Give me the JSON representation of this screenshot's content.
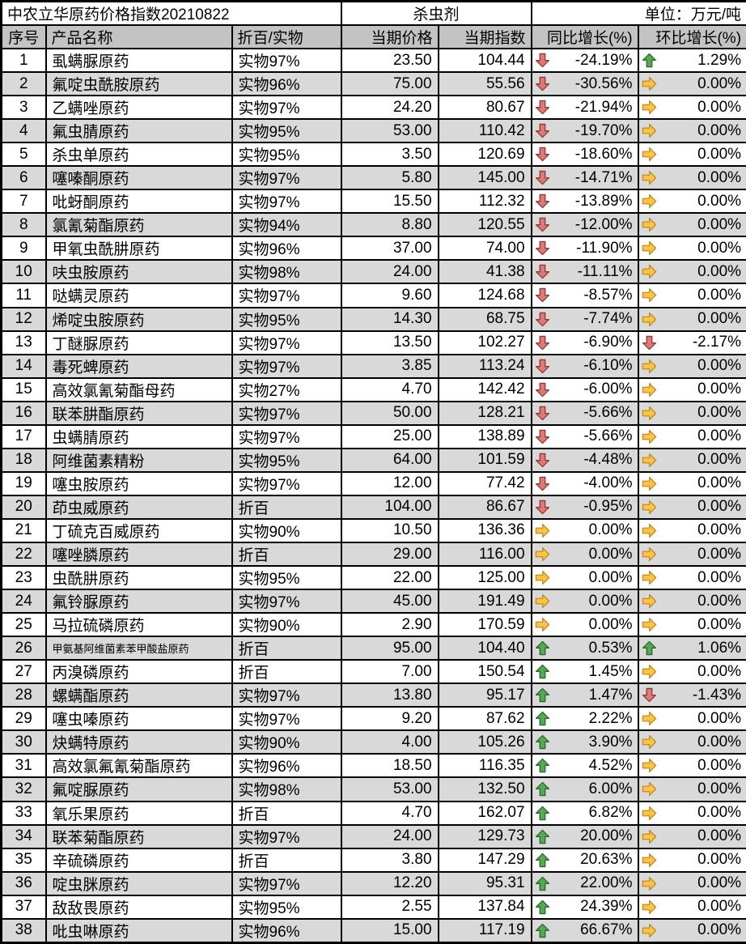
{
  "header": {
    "title": "中农立华原药价格指数20210822",
    "category": "杀虫剂",
    "unit": "单位：万元/吨"
  },
  "columns": {
    "no": "序号",
    "name": "产品名称",
    "basis": "折百/实物",
    "price": "当期价格",
    "index": "当期指数",
    "yoy": "同比增长(%)",
    "mom": "环比增长(%)"
  },
  "colors": {
    "header_bg": "#c3c3c3",
    "alt_row_bg": "#d9d9d9",
    "up_green_fill": "#55a855",
    "up_green_stroke": "#2d682d",
    "down_red_fill": "#d97c78",
    "down_red_stroke": "#963634",
    "flat_yellow_fill": "#ffc445",
    "flat_yellow_stroke": "#be8c28",
    "border": "#000000"
  },
  "icons": {
    "up": "up-arrow-icon",
    "down": "down-arrow-icon",
    "flat": "right-arrow-icon"
  },
  "rows": [
    {
      "no": "1",
      "name": "虱螨脲原药",
      "basis": "实物97%",
      "price": "23.50",
      "index": "104.44",
      "yoy_icon": "down",
      "yoy": "-24.19%",
      "mom_icon": "up",
      "mom": "1.29%"
    },
    {
      "no": "2",
      "name": "氟啶虫酰胺原药",
      "basis": "实物96%",
      "price": "75.00",
      "index": "55.56",
      "yoy_icon": "down",
      "yoy": "-30.56%",
      "mom_icon": "flat",
      "mom": "0.00%"
    },
    {
      "no": "3",
      "name": "乙螨唑原药",
      "basis": "实物97%",
      "price": "24.20",
      "index": "80.67",
      "yoy_icon": "down",
      "yoy": "-21.94%",
      "mom_icon": "flat",
      "mom": "0.00%"
    },
    {
      "no": "4",
      "name": "氟虫腈原药",
      "basis": "实物95%",
      "price": "53.00",
      "index": "110.42",
      "yoy_icon": "down",
      "yoy": "-19.70%",
      "mom_icon": "flat",
      "mom": "0.00%"
    },
    {
      "no": "5",
      "name": "杀虫单原药",
      "basis": "实物95%",
      "price": "3.50",
      "index": "120.69",
      "yoy_icon": "down",
      "yoy": "-18.60%",
      "mom_icon": "flat",
      "mom": "0.00%"
    },
    {
      "no": "6",
      "name": "噻嗪酮原药",
      "basis": "实物97%",
      "price": "5.80",
      "index": "145.00",
      "yoy_icon": "down",
      "yoy": "-14.71%",
      "mom_icon": "flat",
      "mom": "0.00%"
    },
    {
      "no": "7",
      "name": "吡蚜酮原药",
      "basis": "实物97%",
      "price": "15.50",
      "index": "112.32",
      "yoy_icon": "down",
      "yoy": "-13.89%",
      "mom_icon": "flat",
      "mom": "0.00%"
    },
    {
      "no": "8",
      "name": "氯氰菊酯原药",
      "basis": "实物94%",
      "price": "8.80",
      "index": "120.55",
      "yoy_icon": "down",
      "yoy": "-12.00%",
      "mom_icon": "flat",
      "mom": "0.00%"
    },
    {
      "no": "9",
      "name": "甲氧虫酰肼原药",
      "basis": "实物96%",
      "price": "37.00",
      "index": "74.00",
      "yoy_icon": "down",
      "yoy": "-11.90%",
      "mom_icon": "flat",
      "mom": "0.00%"
    },
    {
      "no": "10",
      "name": "呋虫胺原药",
      "basis": "实物98%",
      "price": "24.00",
      "index": "41.38",
      "yoy_icon": "down",
      "yoy": "-11.11%",
      "mom_icon": "flat",
      "mom": "0.00%"
    },
    {
      "no": "11",
      "name": "哒螨灵原药",
      "basis": "实物97%",
      "price": "9.60",
      "index": "124.68",
      "yoy_icon": "down",
      "yoy": "-8.57%",
      "mom_icon": "flat",
      "mom": "0.00%"
    },
    {
      "no": "12",
      "name": "烯啶虫胺原药",
      "basis": "实物95%",
      "price": "14.30",
      "index": "68.75",
      "yoy_icon": "down",
      "yoy": "-7.74%",
      "mom_icon": "flat",
      "mom": "0.00%"
    },
    {
      "no": "13",
      "name": "丁醚脲原药",
      "basis": "实物97%",
      "price": "13.50",
      "index": "102.27",
      "yoy_icon": "down",
      "yoy": "-6.90%",
      "mom_icon": "down",
      "mom": "-2.17%"
    },
    {
      "no": "14",
      "name": "毒死蜱原药",
      "basis": "实物97%",
      "price": "3.85",
      "index": "113.24",
      "yoy_icon": "down",
      "yoy": "-6.10%",
      "mom_icon": "flat",
      "mom": "0.00%"
    },
    {
      "no": "15",
      "name": "高效氯氰菊酯母药",
      "basis": "实物27%",
      "price": "4.70",
      "index": "142.42",
      "yoy_icon": "down",
      "yoy": "-6.00%",
      "mom_icon": "flat",
      "mom": "0.00%"
    },
    {
      "no": "16",
      "name": "联苯肼酯原药",
      "basis": "实物97%",
      "price": "50.00",
      "index": "128.21",
      "yoy_icon": "down",
      "yoy": "-5.66%",
      "mom_icon": "flat",
      "mom": "0.00%"
    },
    {
      "no": "17",
      "name": "虫螨腈原药",
      "basis": "实物97%",
      "price": "25.00",
      "index": "138.89",
      "yoy_icon": "down",
      "yoy": "-5.66%",
      "mom_icon": "flat",
      "mom": "0.00%"
    },
    {
      "no": "18",
      "name": "阿维菌素精粉",
      "basis": "实物95%",
      "price": "64.00",
      "index": "101.59",
      "yoy_icon": "down",
      "yoy": "-4.48%",
      "mom_icon": "flat",
      "mom": "0.00%"
    },
    {
      "no": "19",
      "name": "噻虫胺原药",
      "basis": "实物97%",
      "price": "12.00",
      "index": "77.42",
      "yoy_icon": "down",
      "yoy": "-4.00%",
      "mom_icon": "flat",
      "mom": "0.00%"
    },
    {
      "no": "20",
      "name": "茚虫威原药",
      "basis": "折百",
      "price": "104.00",
      "index": "86.67",
      "yoy_icon": "down",
      "yoy": "-0.95%",
      "mom_icon": "flat",
      "mom": "0.00%"
    },
    {
      "no": "21",
      "name": "丁硫克百威原药",
      "basis": "实物90%",
      "price": "10.50",
      "index": "136.36",
      "yoy_icon": "flat",
      "yoy": "0.00%",
      "mom_icon": "flat",
      "mom": "0.00%"
    },
    {
      "no": "22",
      "name": "噻唑膦原药",
      "basis": "折百",
      "price": "29.00",
      "index": "116.00",
      "yoy_icon": "flat",
      "yoy": "0.00%",
      "mom_icon": "flat",
      "mom": "0.00%"
    },
    {
      "no": "23",
      "name": "虫酰肼原药",
      "basis": "实物95%",
      "price": "22.00",
      "index": "125.00",
      "yoy_icon": "flat",
      "yoy": "0.00%",
      "mom_icon": "flat",
      "mom": "0.00%"
    },
    {
      "no": "24",
      "name": "氟铃脲原药",
      "basis": "实物97%",
      "price": "45.00",
      "index": "191.49",
      "yoy_icon": "flat",
      "yoy": "0.00%",
      "mom_icon": "flat",
      "mom": "0.00%"
    },
    {
      "no": "25",
      "name": "马拉硫磷原药",
      "basis": "实物90%",
      "price": "2.90",
      "index": "170.59",
      "yoy_icon": "flat",
      "yoy": "0.00%",
      "mom_icon": "flat",
      "mom": "0.00%"
    },
    {
      "no": "26",
      "name": "甲氨基阿维菌素苯甲酸盐原药",
      "basis": "折百",
      "price": "95.00",
      "index": "104.40",
      "yoy_icon": "up",
      "yoy": "0.53%",
      "mom_icon": "up",
      "mom": "1.06%"
    },
    {
      "no": "27",
      "name": "丙溴磷原药",
      "basis": "折百",
      "price": "7.00",
      "index": "150.54",
      "yoy_icon": "up",
      "yoy": "1.45%",
      "mom_icon": "flat",
      "mom": "0.00%"
    },
    {
      "no": "28",
      "name": "螺螨酯原药",
      "basis": "实物97%",
      "price": "13.80",
      "index": "95.17",
      "yoy_icon": "up",
      "yoy": "1.47%",
      "mom_icon": "down",
      "mom": "-1.43%"
    },
    {
      "no": "29",
      "name": "噻虫嗪原药",
      "basis": "实物97%",
      "price": "9.20",
      "index": "87.62",
      "yoy_icon": "up",
      "yoy": "2.22%",
      "mom_icon": "flat",
      "mom": "0.00%"
    },
    {
      "no": "30",
      "name": "炔螨特原药",
      "basis": "实物90%",
      "price": "4.00",
      "index": "105.26",
      "yoy_icon": "up",
      "yoy": "3.90%",
      "mom_icon": "flat",
      "mom": "0.00%"
    },
    {
      "no": "31",
      "name": "高效氯氟氰菊酯原药",
      "basis": "实物96%",
      "price": "18.50",
      "index": "116.35",
      "yoy_icon": "up",
      "yoy": "4.52%",
      "mom_icon": "flat",
      "mom": "0.00%"
    },
    {
      "no": "32",
      "name": "氟啶脲原药",
      "basis": "实物98%",
      "price": "53.00",
      "index": "132.50",
      "yoy_icon": "up",
      "yoy": "6.00%",
      "mom_icon": "flat",
      "mom": "0.00%"
    },
    {
      "no": "33",
      "name": "氧乐果原药",
      "basis": "折百",
      "price": "4.70",
      "index": "162.07",
      "yoy_icon": "up",
      "yoy": "6.82%",
      "mom_icon": "flat",
      "mom": "0.00%"
    },
    {
      "no": "34",
      "name": "联苯菊酯原药",
      "basis": "实物97%",
      "price": "24.00",
      "index": "129.73",
      "yoy_icon": "up",
      "yoy": "20.00%",
      "mom_icon": "flat",
      "mom": "0.00%"
    },
    {
      "no": "35",
      "name": "辛硫磷原药",
      "basis": "折百",
      "price": "3.80",
      "index": "147.29",
      "yoy_icon": "up",
      "yoy": "20.63%",
      "mom_icon": "flat",
      "mom": "0.00%"
    },
    {
      "no": "36",
      "name": "啶虫脒原药",
      "basis": "实物97%",
      "price": "12.20",
      "index": "95.31",
      "yoy_icon": "up",
      "yoy": "22.00%",
      "mom_icon": "flat",
      "mom": "0.00%"
    },
    {
      "no": "37",
      "name": "敌敌畏原药",
      "basis": "实物95%",
      "price": "2.55",
      "index": "137.84",
      "yoy_icon": "up",
      "yoy": "24.39%",
      "mom_icon": "flat",
      "mom": "0.00%"
    },
    {
      "no": "38",
      "name": "吡虫啉原药",
      "basis": "实物96%",
      "price": "15.00",
      "index": "117.19",
      "yoy_icon": "up",
      "yoy": "66.67%",
      "mom_icon": "flat",
      "mom": "0.00%"
    }
  ]
}
